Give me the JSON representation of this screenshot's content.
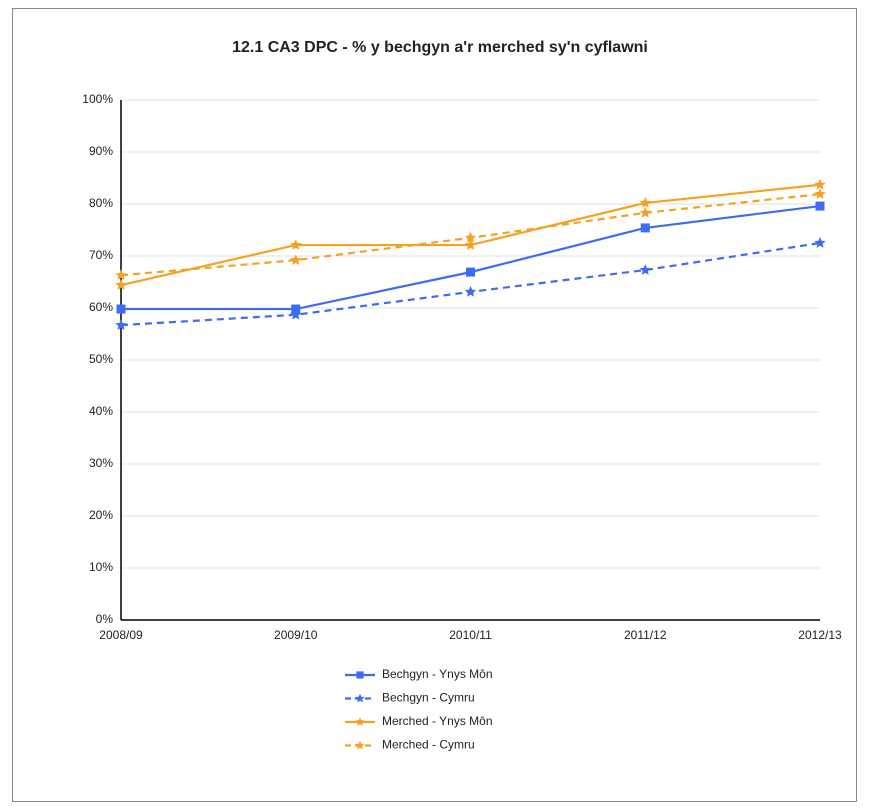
{
  "chart_data": {
    "type": "line",
    "title": "12.1  CA3 DPC - % y bechgyn a'r merched sy'n cyflawni",
    "categories": [
      "2008/09",
      "2009/10",
      "2010/11",
      "2011/12",
      "2012/13"
    ],
    "series": [
      {
        "name": "Bechgyn - Ynys Môn",
        "color": "#3d6cf2",
        "line_style": "solid",
        "marker": "square",
        "values": [
          59.8,
          59.8,
          66.9,
          75.4,
          79.6
        ]
      },
      {
        "name": "Bechgyn - Cymru",
        "color": "#3d6cf2",
        "line_style": "dashed",
        "marker": "star",
        "values": [
          56.7,
          58.7,
          63.1,
          67.3,
          72.5
        ]
      },
      {
        "name": "Merched - Ynys Môn",
        "color": "#f5a222",
        "line_style": "solid",
        "marker": "star",
        "values": [
          64.4,
          72.1,
          72.1,
          80.2,
          83.7
        ]
      },
      {
        "name": "Merched - Cymru",
        "color": "#f5a222",
        "line_style": "dashed",
        "marker": "star",
        "values": [
          66.3,
          69.2,
          73.5,
          78.3,
          81.9
        ]
      }
    ],
    "ylim": [
      0,
      100
    ],
    "yticks": [
      {
        "value": 0,
        "label": "0%"
      },
      {
        "value": 10,
        "label": "10%"
      },
      {
        "value": 20,
        "label": "20%"
      },
      {
        "value": 30,
        "label": "30%"
      },
      {
        "value": 40,
        "label": "40%"
      },
      {
        "value": 50,
        "label": "50%"
      },
      {
        "value": 60,
        "label": "60%"
      },
      {
        "value": 70,
        "label": "70%"
      },
      {
        "value": 80,
        "label": "80%"
      },
      {
        "value": 90,
        "label": "90%"
      },
      {
        "value": 100,
        "label": "100%"
      }
    ],
    "grid": true,
    "legend": "bottom"
  }
}
